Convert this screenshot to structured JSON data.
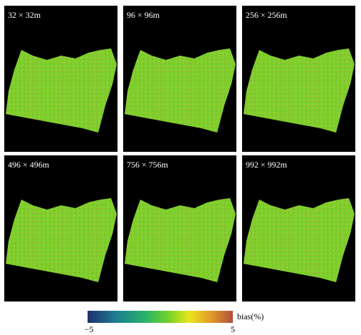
{
  "panels": [
    {
      "label": "32 × 32m"
    },
    {
      "label": "96 × 96m"
    },
    {
      "label": "256 × 256m"
    },
    {
      "label": "496 × 496m"
    },
    {
      "label": "756 × 756m"
    },
    {
      "label": "992 × 992m"
    }
  ],
  "colorbar": {
    "min_label": "−5",
    "max_label": "5",
    "title": "bias(%)"
  }
}
